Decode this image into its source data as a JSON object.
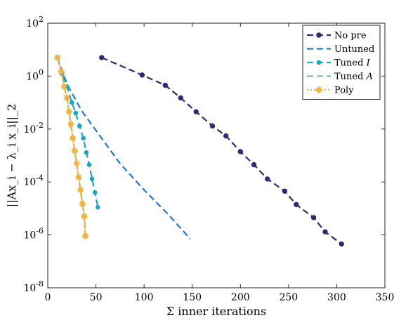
{
  "chart_data": {
    "type": "line",
    "xlabel": "Σ inner iterations",
    "ylabel": "||Ax_i − λ_i x_i||_2",
    "xlim": [
      0,
      350
    ],
    "ylim_log10": [
      -8,
      2
    ],
    "y_scale": "log",
    "grid": false,
    "legend_position": "top-right",
    "x_ticks": [
      0,
      50,
      100,
      150,
      200,
      250,
      300,
      350
    ],
    "x_tick_labels": [
      "0",
      "50",
      "100",
      "150",
      "200",
      "250",
      "300",
      "350"
    ],
    "y_ticks_log10": [
      2,
      0,
      -2,
      -4,
      -6,
      -8
    ],
    "y_tick_labels": [
      {
        "base": "10",
        "exp": "2"
      },
      {
        "base": "10",
        "exp": "0"
      },
      {
        "base": "10",
        "exp": "-2"
      },
      {
        "base": "10",
        "exp": "-4"
      },
      {
        "base": "10",
        "exp": "-6"
      },
      {
        "base": "10",
        "exp": "-8"
      }
    ],
    "series": [
      {
        "name": "No pre",
        "color": "#2e2a78",
        "dash": "dashed",
        "marker": "circle",
        "x": [
          56,
          98,
          122,
          138,
          154,
          171,
          185,
          200,
          214,
          228,
          246,
          258,
          276,
          288,
          305
        ],
        "y": [
          5,
          1.1,
          0.45,
          0.15,
          0.045,
          0.013,
          0.0055,
          0.0014,
          0.00045,
          0.00013,
          4.5e-05,
          1.4e-05,
          4.5e-06,
          1.3e-06,
          4.5e-07
        ]
      },
      {
        "name": "Untuned",
        "color": "#1d77d1",
        "dash": "dashed",
        "marker": "none",
        "x": [
          10,
          20,
          35,
          55,
          75,
          100,
          125,
          148
        ],
        "y": [
          5,
          0.5,
          0.05,
          0.005,
          0.0005,
          5e-05,
          6e-06,
          7e-07
        ]
      },
      {
        "name": "Tuned I",
        "color": "#1aa5c4",
        "dash": "dashed",
        "marker": "dot",
        "x": [
          10,
          15,
          20,
          25,
          29,
          33,
          37,
          40,
          43,
          46,
          49,
          52
        ],
        "y": [
          5,
          1.2,
          0.4,
          0.1,
          0.04,
          0.013,
          0.0045,
          0.0013,
          0.00045,
          0.00013,
          4e-05,
          1.1e-05
        ]
      },
      {
        "name": "Tuned A",
        "color": "#78c57a",
        "dash": "dashed",
        "marker": "none",
        "x": [
          10,
          14,
          17,
          20,
          22,
          24,
          26,
          28,
          30,
          32,
          34,
          36,
          38,
          39
        ],
        "y": [
          5,
          1.5,
          0.4,
          0.15,
          0.045,
          0.015,
          0.0045,
          0.0015,
          0.0005,
          0.00015,
          5e-05,
          1.5e-05,
          5e-06,
          9e-07
        ]
      },
      {
        "name": "Poly",
        "color": "#f0b43e",
        "dash": "dotted",
        "marker": "star",
        "x": [
          10,
          14,
          17,
          20,
          22,
          24,
          26,
          28,
          30,
          32,
          34,
          36,
          38,
          39
        ],
        "y": [
          5,
          1.5,
          0.4,
          0.15,
          0.045,
          0.015,
          0.0045,
          0.0015,
          0.0005,
          0.00015,
          5e-05,
          1.5e-05,
          5e-06,
          9e-07
        ]
      }
    ]
  }
}
